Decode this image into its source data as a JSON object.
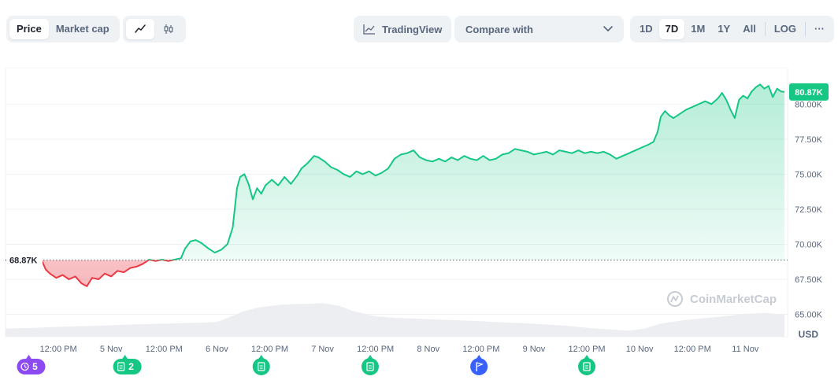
{
  "toolbar": {
    "view_tabs": [
      {
        "label": "Price",
        "active": true
      },
      {
        "label": "Market cap",
        "active": false
      }
    ],
    "chart_type_icons": [
      {
        "icon": "line-chart-icon",
        "active": true
      },
      {
        "icon": "candlestick-icon",
        "active": false
      }
    ],
    "tradingview_label": "TradingView",
    "compare_label": "Compare with",
    "ranges": [
      "1D",
      "7D",
      "1M",
      "1Y",
      "All"
    ],
    "active_range": "7D",
    "log_label": "LOG",
    "more_label": "···"
  },
  "watermark": "CoinMarketCap",
  "colors": {
    "up": "#16c784",
    "down": "#ea3943",
    "up_fill": "#16c784",
    "down_fill": "#ea3943",
    "axis_text": "#58667e",
    "grid": "#eff2f5",
    "volume": "#eceef1"
  },
  "chart_data": {
    "type": "line",
    "currency_label": "USD",
    "baseline_value": 68.87,
    "baseline_label": "68.87K",
    "current_value": 80.87,
    "current_label": "80.87K",
    "y_unit": "K",
    "ylim": [
      63.4,
      82.6
    ],
    "y_ticks": [
      {
        "value": 65,
        "label": "65.00K"
      },
      {
        "value": 67.5,
        "label": "67.50K"
      },
      {
        "value": 70,
        "label": "70.00K"
      },
      {
        "value": 72.5,
        "label": "72.50K"
      },
      {
        "value": 75,
        "label": "75.00K"
      },
      {
        "value": 77.5,
        "label": "77.50K"
      },
      {
        "value": 80,
        "label": "80.00K"
      }
    ],
    "xlim": [
      -0.5,
      6.9
    ],
    "x_ticks": [
      {
        "t": 0,
        "label": "12:00 PM"
      },
      {
        "t": 0.5,
        "label": "5 Nov"
      },
      {
        "t": 1,
        "label": "12:00 PM"
      },
      {
        "t": 1.5,
        "label": "6 Nov"
      },
      {
        "t": 2,
        "label": "12:00 PM"
      },
      {
        "t": 2.5,
        "label": "7 Nov"
      },
      {
        "t": 3,
        "label": "12:00 PM"
      },
      {
        "t": 3.5,
        "label": "8 Nov"
      },
      {
        "t": 4,
        "label": "12:00 PM"
      },
      {
        "t": 4.5,
        "label": "9 Nov"
      },
      {
        "t": 5,
        "label": "12:00 PM"
      },
      {
        "t": 5.5,
        "label": "10 Nov"
      },
      {
        "t": 6,
        "label": "12:00 PM"
      },
      {
        "t": 6.5,
        "label": "11 Nov"
      }
    ],
    "series": [
      {
        "points": [
          [
            -0.5,
            68.87
          ],
          [
            -0.16,
            68.9
          ],
          [
            -0.12,
            68.2
          ],
          [
            -0.08,
            67.9
          ],
          [
            -0.02,
            67.6
          ],
          [
            0.04,
            67.8
          ],
          [
            0.1,
            67.5
          ],
          [
            0.16,
            67.7
          ],
          [
            0.22,
            67.2
          ],
          [
            0.27,
            67.0
          ],
          [
            0.32,
            67.6
          ],
          [
            0.38,
            67.5
          ],
          [
            0.44,
            67.9
          ],
          [
            0.5,
            67.7
          ],
          [
            0.56,
            68.1
          ],
          [
            0.62,
            68.0
          ],
          [
            0.68,
            68.3
          ],
          [
            0.74,
            68.4
          ],
          [
            0.8,
            68.6
          ],
          [
            0.86,
            68.9
          ],
          [
            0.92,
            68.8
          ],
          [
            0.98,
            68.9
          ],
          [
            1.04,
            68.8
          ],
          [
            1.1,
            68.9
          ],
          [
            1.16,
            69.0
          ],
          [
            1.2,
            69.7
          ],
          [
            1.25,
            70.2
          ],
          [
            1.3,
            70.3
          ],
          [
            1.35,
            70.1
          ],
          [
            1.42,
            69.7
          ],
          [
            1.48,
            69.4
          ],
          [
            1.54,
            69.6
          ],
          [
            1.6,
            70.0
          ],
          [
            1.65,
            71.2
          ],
          [
            1.69,
            74.0
          ],
          [
            1.72,
            74.8
          ],
          [
            1.76,
            75.0
          ],
          [
            1.8,
            74.3
          ],
          [
            1.84,
            73.2
          ],
          [
            1.88,
            74.0
          ],
          [
            1.92,
            73.6
          ],
          [
            1.96,
            74.2
          ],
          [
            2.02,
            74.6
          ],
          [
            2.08,
            74.2
          ],
          [
            2.14,
            74.8
          ],
          [
            2.2,
            74.3
          ],
          [
            2.26,
            74.9
          ],
          [
            2.3,
            75.4
          ],
          [
            2.36,
            75.8
          ],
          [
            2.42,
            76.3
          ],
          [
            2.46,
            76.2
          ],
          [
            2.52,
            75.9
          ],
          [
            2.58,
            75.5
          ],
          [
            2.64,
            75.3
          ],
          [
            2.7,
            75.0
          ],
          [
            2.76,
            74.8
          ],
          [
            2.82,
            75.2
          ],
          [
            2.88,
            75.0
          ],
          [
            2.94,
            75.2
          ],
          [
            3.0,
            74.9
          ],
          [
            3.06,
            75.1
          ],
          [
            3.12,
            75.4
          ],
          [
            3.18,
            76.1
          ],
          [
            3.24,
            76.4
          ],
          [
            3.3,
            76.5
          ],
          [
            3.36,
            76.7
          ],
          [
            3.42,
            76.2
          ],
          [
            3.48,
            76.0
          ],
          [
            3.54,
            75.9
          ],
          [
            3.6,
            76.1
          ],
          [
            3.66,
            75.9
          ],
          [
            3.72,
            76.2
          ],
          [
            3.78,
            76.0
          ],
          [
            3.84,
            76.3
          ],
          [
            3.9,
            76.1
          ],
          [
            3.96,
            76.0
          ],
          [
            4.02,
            76.3
          ],
          [
            4.08,
            76.0
          ],
          [
            4.14,
            76.1
          ],
          [
            4.2,
            76.4
          ],
          [
            4.26,
            76.5
          ],
          [
            4.32,
            76.8
          ],
          [
            4.38,
            76.7
          ],
          [
            4.44,
            76.6
          ],
          [
            4.5,
            76.4
          ],
          [
            4.56,
            76.5
          ],
          [
            4.62,
            76.6
          ],
          [
            4.68,
            76.4
          ],
          [
            4.74,
            76.7
          ],
          [
            4.8,
            76.6
          ],
          [
            4.86,
            76.5
          ],
          [
            4.92,
            76.7
          ],
          [
            4.98,
            76.5
          ],
          [
            5.04,
            76.6
          ],
          [
            5.1,
            76.5
          ],
          [
            5.16,
            76.6
          ],
          [
            5.22,
            76.4
          ],
          [
            5.28,
            76.1
          ],
          [
            5.34,
            76.3
          ],
          [
            5.4,
            76.5
          ],
          [
            5.46,
            76.7
          ],
          [
            5.52,
            76.9
          ],
          [
            5.58,
            77.1
          ],
          [
            5.63,
            77.3
          ],
          [
            5.67,
            78.0
          ],
          [
            5.7,
            79.1
          ],
          [
            5.74,
            79.5
          ],
          [
            5.78,
            79.2
          ],
          [
            5.82,
            79.0
          ],
          [
            5.88,
            79.3
          ],
          [
            5.94,
            79.6
          ],
          [
            6.0,
            79.8
          ],
          [
            6.06,
            80.0
          ],
          [
            6.12,
            80.2
          ],
          [
            6.18,
            80.0
          ],
          [
            6.24,
            80.4
          ],
          [
            6.28,
            80.8
          ],
          [
            6.32,
            80.3
          ],
          [
            6.36,
            79.6
          ],
          [
            6.4,
            79.0
          ],
          [
            6.44,
            80.3
          ],
          [
            6.48,
            80.6
          ],
          [
            6.52,
            80.4
          ],
          [
            6.56,
            80.9
          ],
          [
            6.6,
            81.2
          ],
          [
            6.64,
            81.4
          ],
          [
            6.68,
            81.1
          ],
          [
            6.72,
            81.3
          ],
          [
            6.76,
            80.5
          ],
          [
            6.8,
            81.1
          ],
          [
            6.84,
            80.9
          ],
          [
            6.87,
            80.87
          ]
        ]
      }
    ],
    "volume": [
      [
        -0.5,
        0.2
      ],
      [
        -0.2,
        0.22
      ],
      [
        0.1,
        0.25
      ],
      [
        0.4,
        0.27
      ],
      [
        0.7,
        0.3
      ],
      [
        1.0,
        0.32
      ],
      [
        1.3,
        0.34
      ],
      [
        1.5,
        0.36
      ],
      [
        1.6,
        0.46
      ],
      [
        1.75,
        0.62
      ],
      [
        1.9,
        0.72
      ],
      [
        2.1,
        0.78
      ],
      [
        2.3,
        0.8
      ],
      [
        2.5,
        0.82
      ],
      [
        2.65,
        0.76
      ],
      [
        2.8,
        0.62
      ],
      [
        3.0,
        0.5
      ],
      [
        3.2,
        0.46
      ],
      [
        3.4,
        0.44
      ],
      [
        3.6,
        0.42
      ],
      [
        3.8,
        0.4
      ],
      [
        4.0,
        0.38
      ],
      [
        4.2,
        0.35
      ],
      [
        4.4,
        0.33
      ],
      [
        4.6,
        0.3
      ],
      [
        4.8,
        0.27
      ],
      [
        5.0,
        0.22
      ],
      [
        5.2,
        0.18
      ],
      [
        5.4,
        0.15
      ],
      [
        5.55,
        0.2
      ],
      [
        5.7,
        0.32
      ],
      [
        5.9,
        0.4
      ],
      [
        6.1,
        0.45
      ],
      [
        6.3,
        0.5
      ],
      [
        6.5,
        0.56
      ],
      [
        6.7,
        0.58
      ],
      [
        6.87,
        0.54
      ]
    ],
    "annotations": [
      {
        "t": -0.28,
        "kind": "history",
        "icon": "history-icon",
        "label": "5",
        "color": "#8c4bf0"
      },
      {
        "t": 0.63,
        "kind": "news",
        "icon": "document-icon",
        "label": "2",
        "color": "#16c784"
      },
      {
        "t": 1.92,
        "kind": "news",
        "icon": "document-icon",
        "label": "",
        "color": "#16c784"
      },
      {
        "t": 2.95,
        "kind": "news",
        "icon": "document-icon",
        "label": "",
        "color": "#16c784"
      },
      {
        "t": 3.98,
        "kind": "flag",
        "icon": "flag-icon",
        "label": "",
        "color": "#3861fb"
      },
      {
        "t": 5.0,
        "kind": "news",
        "icon": "document-icon",
        "label": "",
        "color": "#16c784"
      }
    ]
  }
}
